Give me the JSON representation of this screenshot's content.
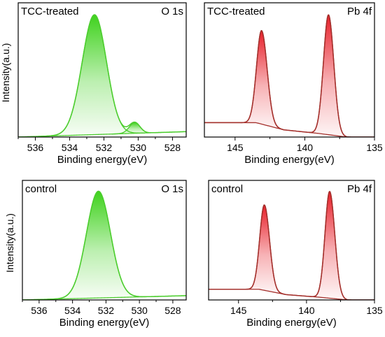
{
  "figure": {
    "panels": [
      "o1s-treated",
      "pb4f-treated",
      "o1s-control",
      "pb4f-control"
    ]
  },
  "chart_data": [
    {
      "id": "o1s-treated",
      "type": "line",
      "sample": "TCC-treated",
      "title": "O 1s",
      "xlabel": "Binding energy(eV)",
      "ylabel": "Intensity(a.u.)",
      "xlim": [
        537.0,
        527.2
      ],
      "x_reversed": true,
      "ylim": [
        0,
        1.12
      ],
      "xticks": [
        536,
        534,
        532,
        530,
        528
      ],
      "colors": {
        "stroke": "#4ccd2e",
        "fill": "#3fd21d",
        "background": "#4ccd2e"
      },
      "background_line": {
        "x": [
          537.0,
          527.2
        ],
        "y": [
          0.0,
          0.045
        ]
      },
      "peaks": [
        {
          "center": 532.55,
          "height": 1.0,
          "sigma_left": 0.72,
          "sigma_right": 0.7
        },
        {
          "center": 530.2,
          "height": 0.09,
          "sigma_left": 0.32,
          "sigma_right": 0.3
        }
      ]
    },
    {
      "id": "pb4f-treated",
      "type": "line",
      "sample": "TCC-treated",
      "title": "Pb 4f",
      "xlabel": "Binding energy(eV)",
      "ylabel": "",
      "xlim": [
        147.2,
        135.0
      ],
      "x_reversed": true,
      "ylim": [
        0,
        1.12
      ],
      "xticks": [
        145,
        140,
        135
      ],
      "colors": {
        "stroke": "#a4302c",
        "fill": "#e8202a",
        "background": "#a4302c"
      },
      "background_line": {
        "x": [
          147.2,
          143.5,
          141.5,
          139.0,
          137.0,
          135.0
        ],
        "y": [
          0.12,
          0.12,
          0.06,
          0.03,
          0.0,
          0.0
        ]
      },
      "peaks": [
        {
          "center": 143.1,
          "height": 0.78,
          "sigma_left": 0.36,
          "sigma_right": 0.4
        },
        {
          "center": 138.3,
          "height": 1.0,
          "sigma_left": 0.36,
          "sigma_right": 0.38
        }
      ]
    },
    {
      "id": "o1s-control",
      "type": "line",
      "sample": "control",
      "title": "O 1s",
      "xlabel": "Binding energy(eV)",
      "ylabel": "Intensity(a.u.)",
      "xlim": [
        537.0,
        527.2
      ],
      "x_reversed": true,
      "ylim": [
        0,
        1.12
      ],
      "xticks": [
        536,
        534,
        532,
        530,
        528
      ],
      "colors": {
        "stroke": "#4ccd2e",
        "fill": "#3fd21d",
        "background": "#4ccd2e"
      },
      "background_line": {
        "x": [
          537.0,
          527.2
        ],
        "y": [
          0.0,
          0.04
        ]
      },
      "peaks": [
        {
          "center": 532.45,
          "height": 1.0,
          "sigma_left": 0.72,
          "sigma_right": 0.72
        }
      ]
    },
    {
      "id": "pb4f-control",
      "type": "line",
      "sample": "control",
      "title": "Pb 4f",
      "xlabel": "Binding energy(eV)",
      "ylabel": "",
      "xlim": [
        147.2,
        135.0
      ],
      "x_reversed": true,
      "ylim": [
        0,
        1.12
      ],
      "xticks": [
        145,
        140,
        135
      ],
      "colors": {
        "stroke": "#a4302c",
        "fill": "#e8202a",
        "background": "#a4302c"
      },
      "background_line": {
        "x": [
          147.2,
          143.5,
          141.5,
          139.0,
          137.0,
          135.0
        ],
        "y": [
          0.1,
          0.1,
          0.05,
          0.025,
          0.0,
          0.0
        ]
      },
      "peaks": [
        {
          "center": 143.1,
          "height": 0.8,
          "sigma_left": 0.34,
          "sigma_right": 0.38
        },
        {
          "center": 138.3,
          "height": 1.0,
          "sigma_left": 0.34,
          "sigma_right": 0.38
        }
      ]
    }
  ]
}
